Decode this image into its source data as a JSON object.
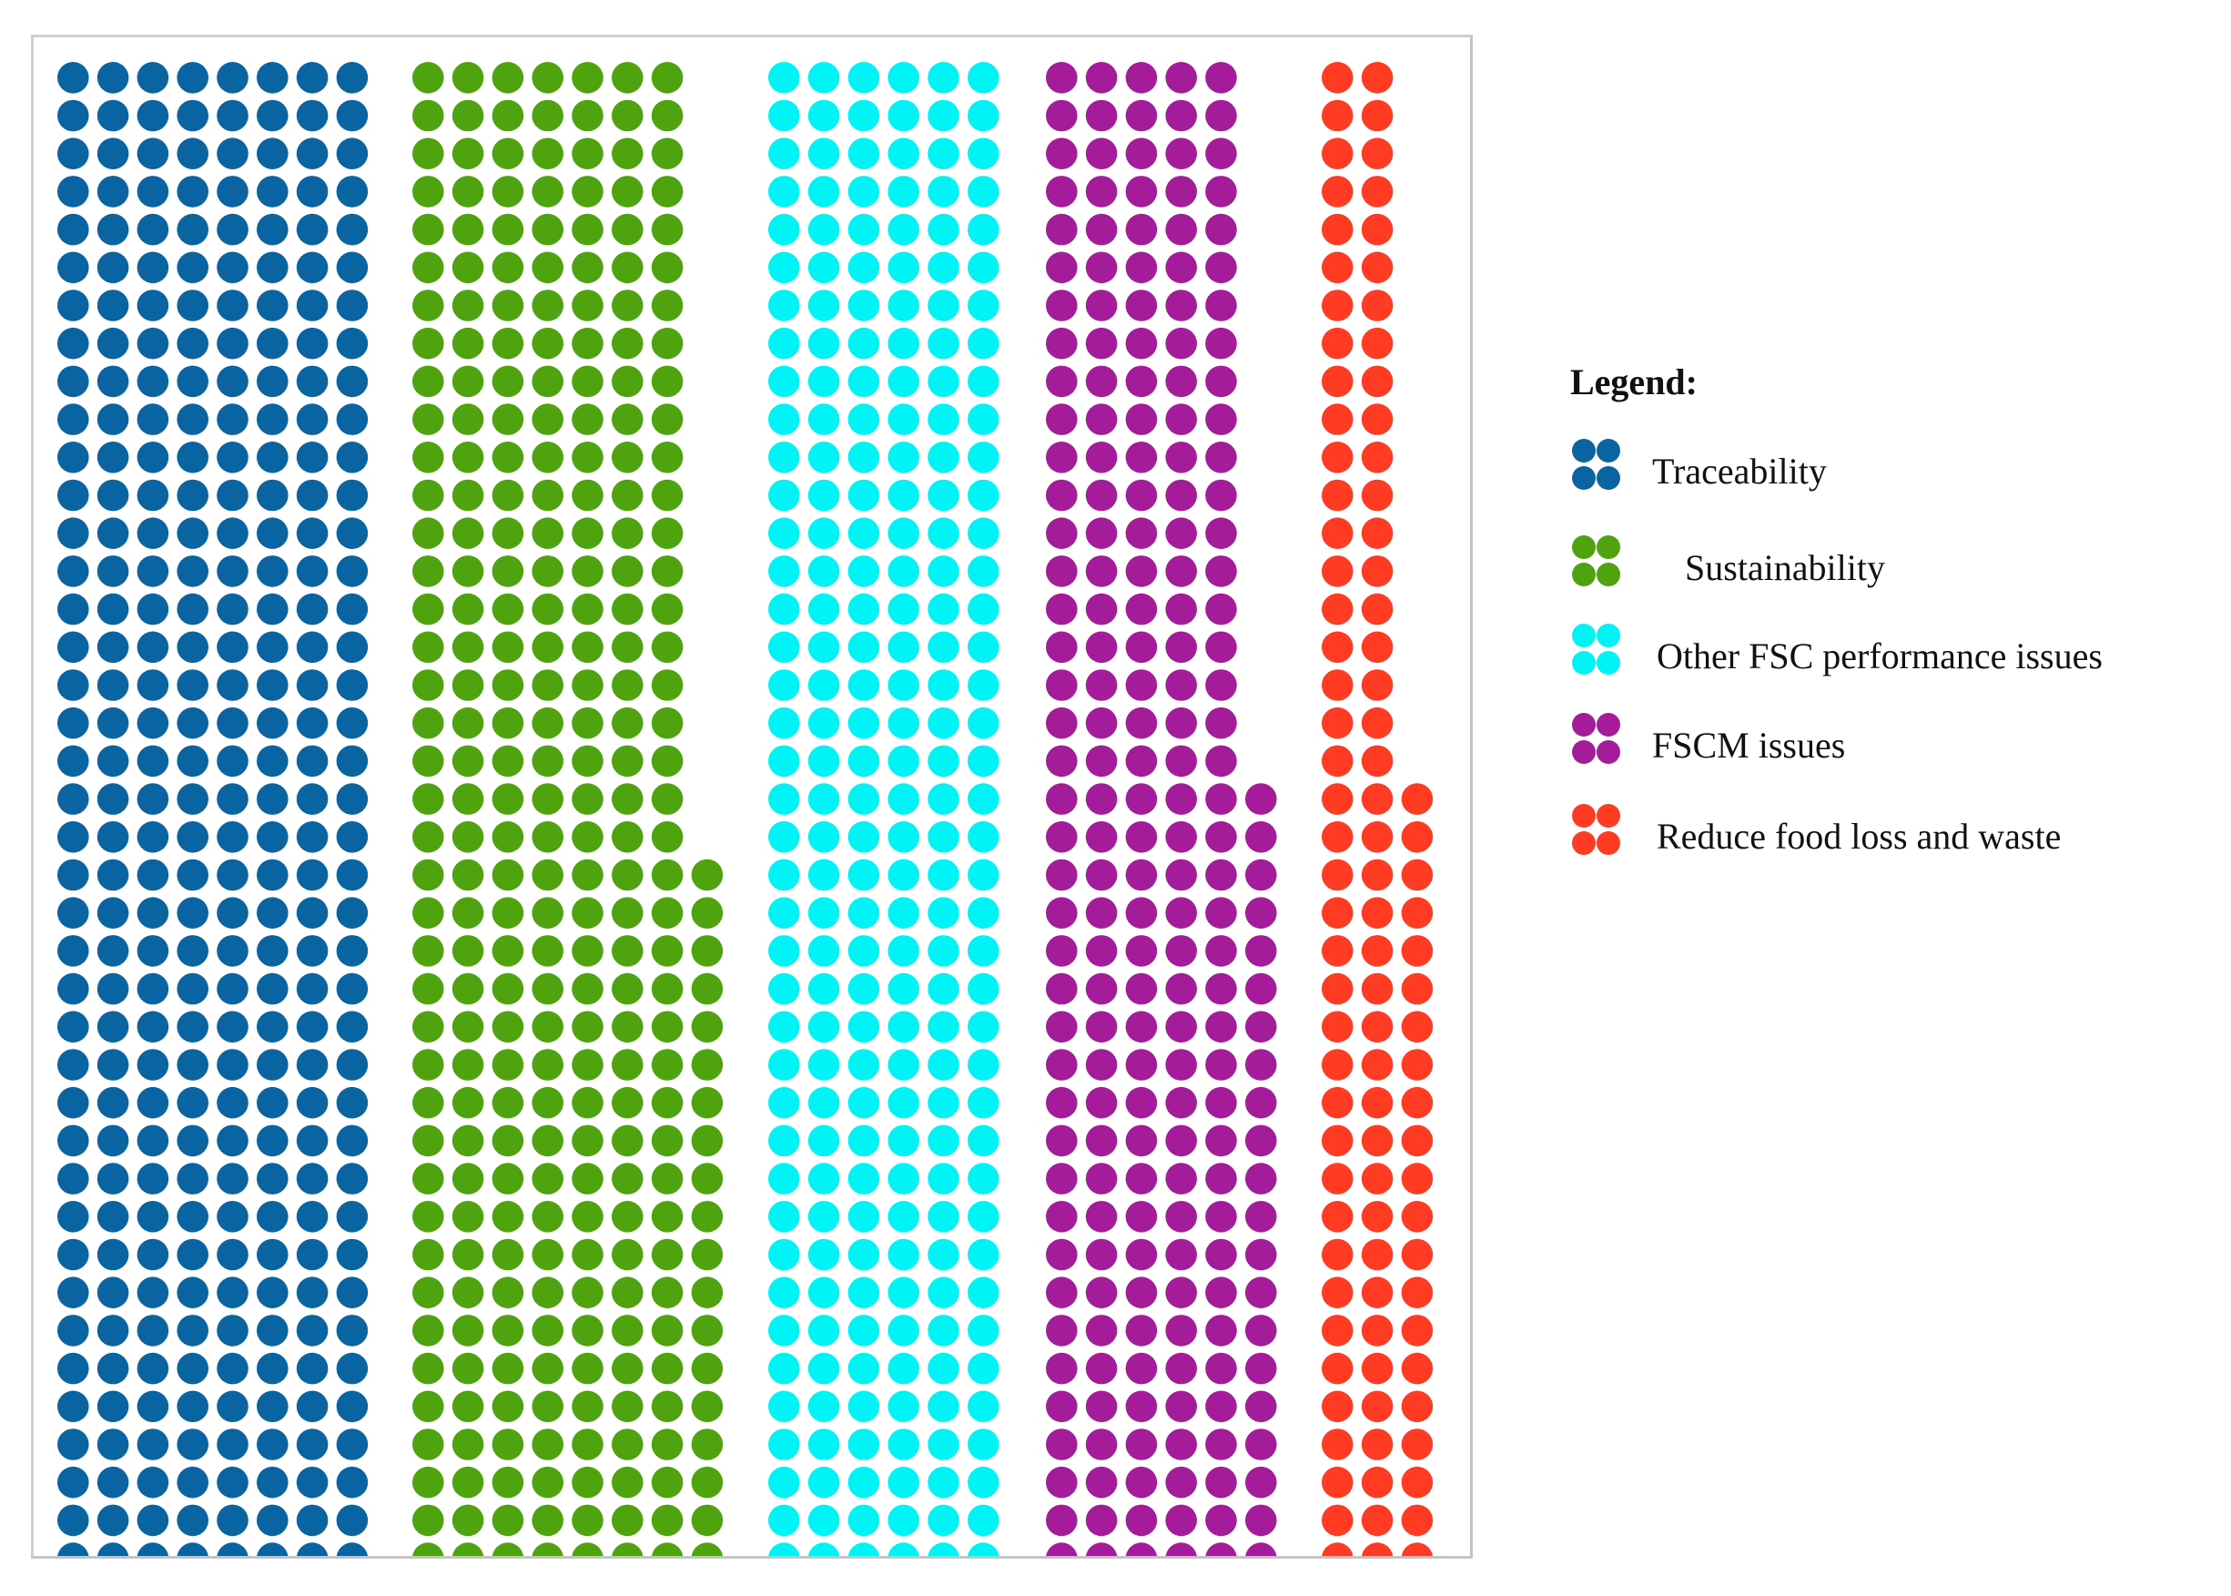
{
  "chart_data": {
    "type": "waffle",
    "title": "",
    "xlabel": "",
    "ylabel": "",
    "legend_title": "Legend:",
    "legend_position": "right",
    "grid": false,
    "series": [
      {
        "name": "Traceability",
        "color": "#0b64a2",
        "count": 315
      },
      {
        "name": "Sustainability",
        "color": "#4fa30f",
        "count": 299
      },
      {
        "name": "Other FSC performance issues",
        "color": "#00f4f6",
        "count": 268
      },
      {
        "name": "FSCM issues",
        "color": "#a51c9a",
        "count": 221
      },
      {
        "name": "Reduce food loss and waste",
        "color": "#ff3b23",
        "count": 101
      }
    ]
  }
}
